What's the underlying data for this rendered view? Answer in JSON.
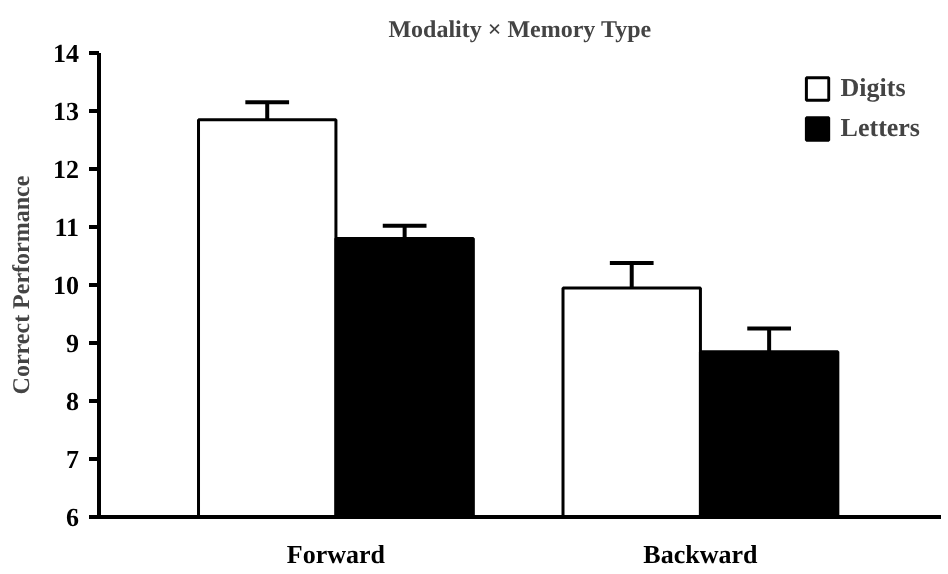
{
  "chart_data": {
    "type": "bar",
    "title": "Modality × Memory Type",
    "ylabel": "Correct Performance",
    "categories": [
      "Forward",
      "Backward"
    ],
    "series": [
      {
        "name": "Digits",
        "color": "#ffffff",
        "values": [
          12.85,
          9.95
        ],
        "errors": [
          [
            12.85,
            13.15
          ],
          [
            9.95,
            10.38
          ]
        ]
      },
      {
        "name": "Letters",
        "color": "#000000",
        "values": [
          10.8,
          8.85
        ],
        "errors": [
          [
            10.8,
            11.02
          ],
          [
            8.85,
            9.25
          ]
        ]
      }
    ],
    "ylim": [
      6,
      14
    ],
    "yticks": [
      6,
      7,
      8,
      9,
      10,
      11,
      12,
      13,
      14
    ],
    "grid": false,
    "legend": "top right"
  }
}
